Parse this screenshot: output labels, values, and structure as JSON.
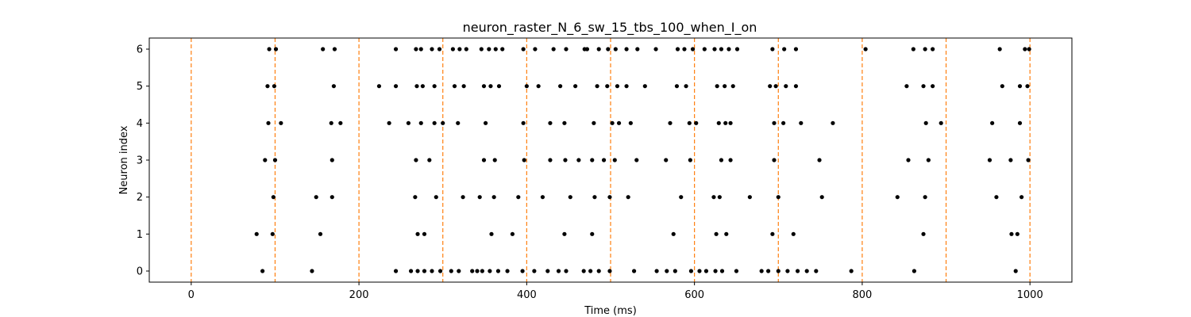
{
  "chart_data": {
    "type": "scatter",
    "title": "neuron_raster_N_6_sw_15_tbs_100_when_I_on",
    "xlabel": "Time (ms)",
    "ylabel": "Neuron index",
    "xlim": [
      -50,
      1050
    ],
    "ylim": [
      -0.3,
      6.3
    ],
    "xticks": [
      0,
      200,
      400,
      600,
      800,
      1000
    ],
    "yticks": [
      0,
      1,
      2,
      3,
      4,
      5,
      6
    ],
    "grid": false,
    "marker_color": "#000000",
    "vline_color": "#ff7f0e",
    "vlines": [
      0,
      100,
      200,
      300,
      400,
      500,
      600,
      700,
      800,
      900,
      1000
    ],
    "series": [
      {
        "neuron": 0,
        "x": [
          85,
          144,
          244,
          262,
          270,
          278,
          287,
          297,
          310,
          319,
          335,
          341,
          347,
          356,
          366,
          377,
          395,
          409,
          425,
          438,
          447,
          468,
          476,
          486,
          499,
          528,
          555,
          567,
          577,
          596,
          606,
          614,
          625,
          633,
          650,
          680,
          688,
          700,
          711,
          723,
          734,
          745,
          787,
          862,
          983
        ]
      },
      {
        "neuron": 1,
        "x": [
          78,
          97,
          154,
          270,
          278,
          358,
          383,
          445,
          478,
          575,
          626,
          638,
          693,
          718,
          873,
          978,
          985
        ]
      },
      {
        "neuron": 2,
        "x": [
          98,
          149,
          168,
          267,
          292,
          324,
          344,
          361,
          390,
          419,
          452,
          481,
          499,
          521,
          584,
          623,
          630,
          666,
          700,
          752,
          842,
          875,
          960,
          990
        ]
      },
      {
        "neuron": 3,
        "x": [
          88,
          100,
          168,
          268,
          284,
          349,
          362,
          397,
          428,
          446,
          462,
          478,
          492,
          505,
          531,
          566,
          595,
          632,
          643,
          695,
          749,
          855,
          879,
          952,
          977,
          998
        ]
      },
      {
        "neuron": 4,
        "x": [
          92,
          107,
          167,
          178,
          236,
          259,
          274,
          290,
          300,
          318,
          351,
          396,
          428,
          445,
          480,
          502,
          510,
          524,
          571,
          594,
          602,
          629,
          637,
          643,
          695,
          706,
          727,
          765,
          876,
          894,
          955,
          988
        ]
      },
      {
        "neuron": 5,
        "x": [
          91,
          99,
          170,
          224,
          244,
          269,
          276,
          290,
          314,
          325,
          349,
          357,
          367,
          400,
          414,
          440,
          458,
          484,
          496,
          508,
          519,
          541,
          579,
          590,
          627,
          636,
          646,
          690,
          697,
          709,
          721,
          853,
          873,
          884,
          967,
          988,
          997
        ]
      },
      {
        "neuron": 6,
        "x": [
          93,
          101,
          157,
          171,
          244,
          268,
          274,
          287,
          296,
          312,
          320,
          328,
          346,
          355,
          363,
          371,
          396,
          410,
          432,
          447,
          469,
          472,
          486,
          497,
          506,
          519,
          532,
          554,
          580,
          588,
          598,
          612,
          624,
          632,
          641,
          651,
          693,
          707,
          721,
          804,
          861,
          875,
          884,
          964,
          994,
          999
        ]
      }
    ]
  }
}
